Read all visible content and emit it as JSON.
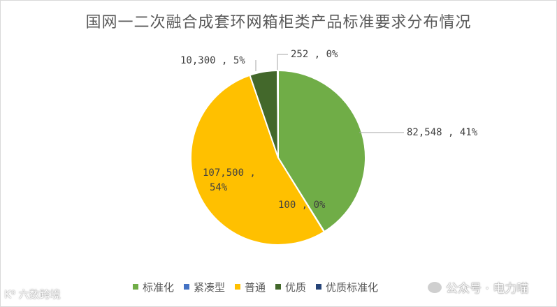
{
  "chart_data": {
    "type": "pie",
    "title": "国网一二次融合成套环网箱柜类产品标准要求分布情况",
    "series": [
      {
        "name": "标准化",
        "value": 82548,
        "label": "82,548 , 41%",
        "color": "#70ad47"
      },
      {
        "name": "紧凑型",
        "value": 100,
        "label": "100 , 0%",
        "color": "#4472c4"
      },
      {
        "name": "普通",
        "value": 107500,
        "label": "107,500 , 54%",
        "color": "#ffc000"
      },
      {
        "name": "优质",
        "value": 10300,
        "label": "10,300 , 5%",
        "color": "#43682b"
      },
      {
        "name": "优质标准化",
        "value": 252,
        "label": "252 , 0%",
        "color": "#264478"
      }
    ],
    "legend_position": "bottom"
  },
  "watermarks": {
    "left": "K⁰ 六数跨境",
    "right": "公众号 · 电力喵"
  }
}
